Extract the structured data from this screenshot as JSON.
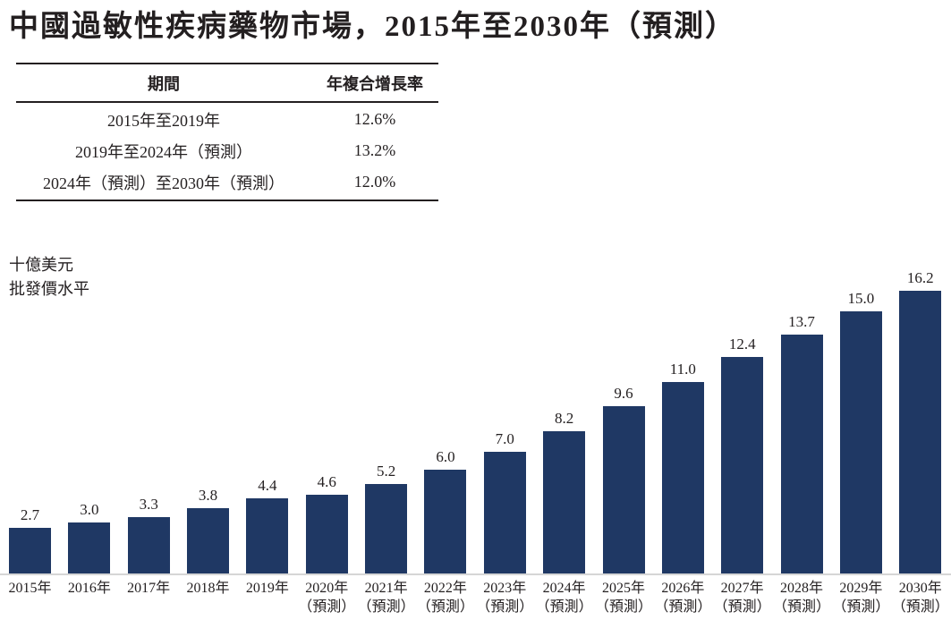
{
  "title": "中國過敏性疾病藥物市場，2015年至2030年（預測）",
  "table": {
    "headers": [
      "期間",
      "年複合增長率"
    ],
    "rows": [
      {
        "period": "2015年至2019年",
        "cagr": "12.6%"
      },
      {
        "period": "2019年至2024年（預測）",
        "cagr": "13.2%"
      },
      {
        "period": "2024年（預測）至2030年（預測）",
        "cagr": "12.0%"
      }
    ]
  },
  "chart_data": {
    "type": "bar",
    "title": "中國過敏性疾病藥物市場，2015年至2030年（預測）",
    "unit_lines": [
      "十億美元",
      "批發價水平"
    ],
    "categories": [
      "2015年",
      "2016年",
      "2017年",
      "2018年",
      "2019年",
      "2020年",
      "2021年",
      "2022年",
      "2023年",
      "2024年",
      "2025年",
      "2026年",
      "2027年",
      "2028年",
      "2029年",
      "2030年"
    ],
    "category_notes": [
      "",
      "",
      "",
      "",
      "",
      "（預測）",
      "（預測）",
      "（預測）",
      "（預測）",
      "（預測）",
      "（預測）",
      "（預測）",
      "（預測）",
      "（預測）",
      "（預測）",
      "（預測）"
    ],
    "values": [
      2.7,
      3.0,
      3.3,
      3.8,
      4.4,
      4.6,
      5.2,
      6.0,
      7.0,
      8.2,
      9.6,
      11.0,
      12.4,
      13.7,
      15.0,
      16.2
    ],
    "value_labels": [
      "2.7",
      "3.0",
      "3.3",
      "3.8",
      "4.4",
      "4.6",
      "5.2",
      "6.0",
      "7.0",
      "8.2",
      "9.6",
      "11.0",
      "12.4",
      "13.7",
      "15.0",
      "16.2"
    ],
    "xlabel": "",
    "ylabel": "十億美元 批發價水平",
    "ylim": [
      0,
      17
    ],
    "grid": false,
    "legend": false,
    "bar_color": "#1f3864",
    "axis_line_color": "#d6d6d6"
  }
}
